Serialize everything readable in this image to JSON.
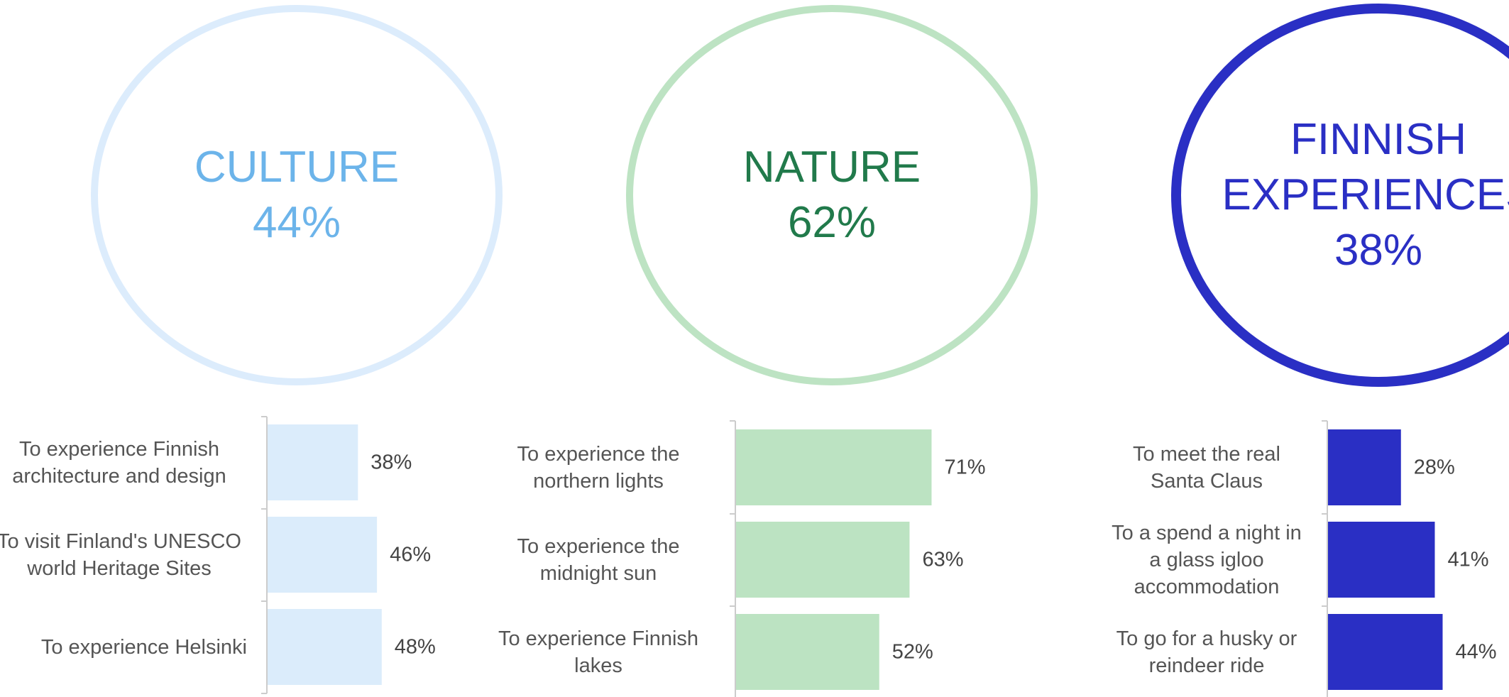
{
  "chart_data": [
    {
      "type": "bar",
      "orientation": "horizontal",
      "title": "CULTURE",
      "headline": "44%",
      "categories": [
        "To experience Finnish architecture and design",
        "To visit Finland's UNESCO world Heritage Sites",
        "To experience Helsinki"
      ],
      "values": [
        38,
        46,
        48
      ],
      "value_labels": [
        "38%",
        "46%",
        "48%"
      ],
      "xlim": [
        0,
        100
      ],
      "color": "#dbecfb",
      "circle_color": "#dcecfc",
      "title_color": "#6cb4ea"
    },
    {
      "type": "bar",
      "orientation": "horizontal",
      "title": "NATURE",
      "headline": "62%",
      "categories": [
        "To experience the northern lights",
        "To experience the midnight sun",
        "To experience Finnish lakes"
      ],
      "values": [
        71,
        63,
        52
      ],
      "value_labels": [
        "71%",
        "63%",
        "52%"
      ],
      "xlim": [
        0,
        100
      ],
      "color": "#bce3c2",
      "circle_color": "#bde3c3",
      "title_color": "#217a4b"
    },
    {
      "type": "bar",
      "orientation": "horizontal",
      "title": "FINNISH EXPERIENCES",
      "headline": "38%",
      "categories": [
        "To meet the real Santa Claus",
        "To a spend a night in a glass igloo accommodation",
        "To go for a husky or reindeer ride"
      ],
      "values": [
        28,
        41,
        44
      ],
      "value_labels": [
        "28%",
        "41%",
        "44%"
      ],
      "xlim": [
        0,
        100
      ],
      "color": "#2a2fc4",
      "circle_color": "#2a2fc4",
      "title_color": "#2a2fc4"
    }
  ]
}
